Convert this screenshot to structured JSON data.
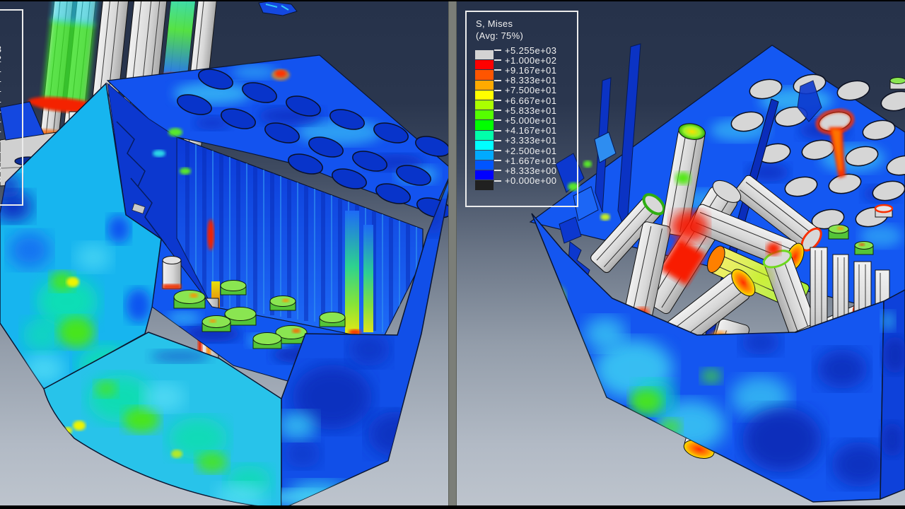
{
  "app": {
    "description_title": "S, Mises",
    "divider_color": "#7b7e78",
    "frame_bar_color": "#000000",
    "background_top": "#26324a",
    "background_bottom": "#bdc4cd"
  },
  "legend": {
    "title": "S, Mises",
    "subtitle": "(Avg: 75%)",
    "values": [
      "+5.255e+03",
      "+1.000e+02",
      "+9.167e+01",
      "+8.333e+01",
      "+7.500e+01",
      "+6.667e+01",
      "+5.833e+01",
      "+5.000e+01",
      "+4.167e+01",
      "+3.333e+01",
      "+2.500e+01",
      "+1.667e+01",
      "+8.333e+00",
      "+0.000e+00"
    ],
    "swatches": [
      "#d3d3d3",
      "#ff0000",
      "#ff5500",
      "#ffaa00",
      "#ffff00",
      "#aaff00",
      "#55ff00",
      "#00ff00",
      "#00ffaa",
      "#00ffff",
      "#00aaff",
      "#0055ff",
      "#0000ff",
      "#202020"
    ],
    "border_color": "#ececec",
    "text_color": "#f0f0f0"
  },
  "chart_data": {
    "type": "heatmap",
    "title": "S, Mises",
    "subtitle": "(Avg: 75%)",
    "legend_position": "top-left",
    "views": [
      "left-model-intact-block-with-rod-bundle",
      "right-model-collapsed-rod-pile"
    ],
    "colorbar": {
      "labels": [
        "+5.255e+03",
        "+1.000e+02",
        "+9.167e+01",
        "+8.333e+01",
        "+7.500e+01",
        "+6.667e+01",
        "+5.833e+01",
        "+5.000e+01",
        "+4.167e+01",
        "+3.333e+01",
        "+2.500e+01",
        "+1.667e+01",
        "+8.333e+00",
        "+0.000e+00"
      ],
      "values": [
        5255,
        100,
        91.67,
        83.33,
        75,
        66.67,
        58.33,
        50,
        41.67,
        33.33,
        25,
        16.67,
        8.333,
        0
      ],
      "band_colors": [
        "#ff0000",
        "#ff5500",
        "#ffaa00",
        "#ffff00",
        "#aaff00",
        "#55ff00",
        "#00ff00",
        "#00ffaa",
        "#00ffff",
        "#00aaff",
        "#0055ff",
        "#0000ff"
      ],
      "overflow_color": "#d3d3d3",
      "underflow_color": "#202020",
      "max_value": 5255,
      "upper_limit": 100,
      "lower_limit": 0
    }
  }
}
